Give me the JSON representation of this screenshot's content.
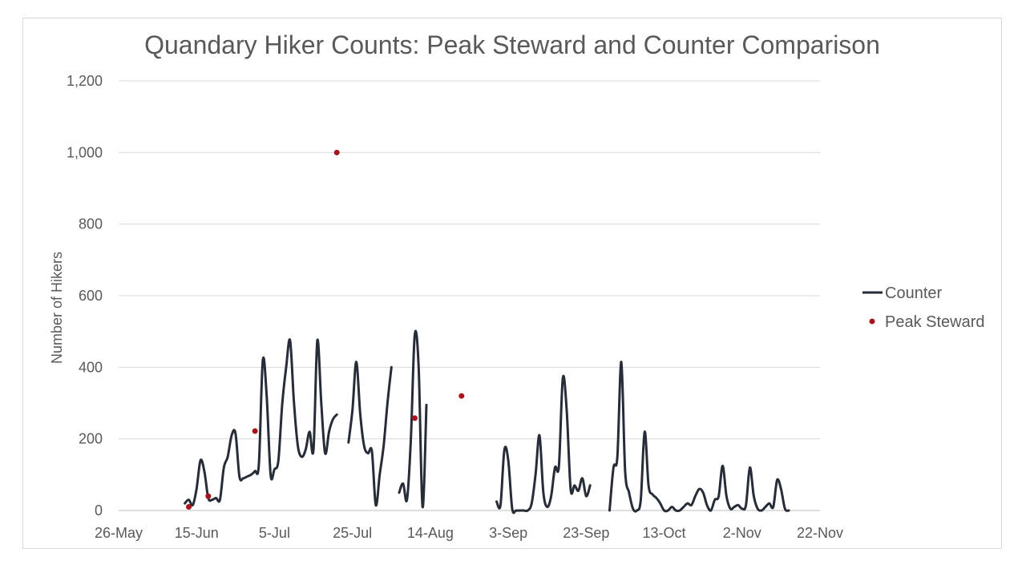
{
  "chart_data": {
    "type": "line",
    "title": "Quandary Hiker Counts: Peak Steward and Counter Comparison",
    "ylabel": "Number of Hikers",
    "xlabel": "",
    "ylim": [
      0,
      1200
    ],
    "xlim": [
      "2017-05-26",
      "2017-11-22"
    ],
    "y_ticks": [
      0,
      200,
      400,
      600,
      800,
      1000,
      1200
    ],
    "y_tick_labels": [
      "0",
      "200",
      "400",
      "600",
      "800",
      "1,000",
      "1,200"
    ],
    "x_ticks": [
      "2017-05-26",
      "2017-06-15",
      "2017-07-05",
      "2017-07-25",
      "2017-08-14",
      "2017-09-03",
      "2017-09-23",
      "2017-10-13",
      "2017-11-02",
      "2017-11-22"
    ],
    "x_tick_labels": [
      "26-May",
      "15-Jun",
      "5-Jul",
      "25-Jul",
      "14-Aug",
      "3-Sep",
      "23-Sep",
      "13-Oct",
      "2-Nov",
      "22-Nov"
    ],
    "grid": "horizontal",
    "legend_position": "right",
    "series": [
      {
        "name": "Counter",
        "kind": "line",
        "color": "#262d37",
        "segments": [
          [
            [
              "2017-06-12",
              20
            ],
            [
              "2017-06-13",
              30
            ],
            [
              "2017-06-14",
              15
            ],
            [
              "2017-06-15",
              60
            ],
            [
              "2017-06-16",
              140
            ],
            [
              "2017-06-17",
              110
            ],
            [
              "2017-06-18",
              35
            ],
            [
              "2017-06-19",
              30
            ],
            [
              "2017-06-20",
              35
            ],
            [
              "2017-06-21",
              30
            ],
            [
              "2017-06-22",
              120
            ],
            [
              "2017-06-23",
              150
            ],
            [
              "2017-06-24",
              210
            ],
            [
              "2017-06-25",
              215
            ],
            [
              "2017-06-26",
              95
            ],
            [
              "2017-06-27",
              90
            ],
            [
              "2017-06-28",
              95
            ],
            [
              "2017-06-29",
              100
            ],
            [
              "2017-06-30",
              110
            ],
            [
              "2017-07-01",
              130
            ],
            [
              "2017-07-02",
              420
            ],
            [
              "2017-07-03",
              320
            ],
            [
              "2017-07-04",
              100
            ],
            [
              "2017-07-05",
              115
            ],
            [
              "2017-07-06",
              140
            ],
            [
              "2017-07-07",
              300
            ],
            [
              "2017-07-08",
              400
            ],
            [
              "2017-07-09",
              475
            ],
            [
              "2017-07-10",
              300
            ],
            [
              "2017-07-11",
              180
            ],
            [
              "2017-07-12",
              150
            ],
            [
              "2017-07-13",
              170
            ],
            [
              "2017-07-14",
              220
            ],
            [
              "2017-07-15",
              170
            ],
            [
              "2017-07-16",
              475
            ],
            [
              "2017-07-17",
              300
            ],
            [
              "2017-07-18",
              160
            ],
            [
              "2017-07-19",
              220
            ],
            [
              "2017-07-20",
              255
            ],
            [
              "2017-07-21",
              268
            ]
          ],
          [
            [
              "2017-07-24",
              190
            ],
            [
              "2017-07-25",
              280
            ],
            [
              "2017-07-26",
              415
            ],
            [
              "2017-07-27",
              270
            ],
            [
              "2017-07-28",
              180
            ],
            [
              "2017-07-29",
              160
            ],
            [
              "2017-07-30",
              165
            ],
            [
              "2017-07-31",
              15
            ],
            [
              "2017-08-01",
              100
            ],
            [
              "2017-08-02",
              180
            ],
            [
              "2017-08-03",
              300
            ],
            [
              "2017-08-04",
              400
            ]
          ],
          [
            [
              "2017-08-06",
              50
            ],
            [
              "2017-08-07",
              75
            ],
            [
              "2017-08-08",
              30
            ],
            [
              "2017-08-09",
              200
            ],
            [
              "2017-08-10",
              490
            ],
            [
              "2017-08-11",
              400
            ],
            [
              "2017-08-12",
              10
            ],
            [
              "2017-08-13",
              295
            ]
          ],
          [
            [
              "2017-08-31",
              25
            ],
            [
              "2017-09-01",
              15
            ],
            [
              "2017-09-02",
              170
            ],
            [
              "2017-09-03",
              140
            ],
            [
              "2017-09-04",
              5
            ],
            [
              "2017-09-05",
              0
            ],
            [
              "2017-09-06",
              0
            ],
            [
              "2017-09-07",
              0
            ],
            [
              "2017-09-08",
              0
            ],
            [
              "2017-09-09",
              20
            ],
            [
              "2017-09-10",
              100
            ],
            [
              "2017-09-11",
              210
            ],
            [
              "2017-09-12",
              50
            ],
            [
              "2017-09-13",
              10
            ],
            [
              "2017-09-14",
              40
            ],
            [
              "2017-09-15",
              120
            ],
            [
              "2017-09-16",
              125
            ],
            [
              "2017-09-17",
              370
            ],
            [
              "2017-09-18",
              280
            ],
            [
              "2017-09-19",
              60
            ],
            [
              "2017-09-20",
              70
            ],
            [
              "2017-09-21",
              55
            ],
            [
              "2017-09-22",
              90
            ],
            [
              "2017-09-23",
              40
            ],
            [
              "2017-09-24",
              70
            ]
          ],
          [
            [
              "2017-09-29",
              0
            ],
            [
              "2017-09-30",
              120
            ],
            [
              "2017-10-01",
              150
            ],
            [
              "2017-10-02",
              415
            ],
            [
              "2017-10-03",
              110
            ],
            [
              "2017-10-04",
              50
            ],
            [
              "2017-10-05",
              5
            ],
            [
              "2017-10-06",
              0
            ],
            [
              "2017-10-07",
              30
            ],
            [
              "2017-10-08",
              220
            ],
            [
              "2017-10-09",
              70
            ],
            [
              "2017-10-10",
              45
            ],
            [
              "2017-10-11",
              35
            ],
            [
              "2017-10-12",
              20
            ],
            [
              "2017-10-13",
              0
            ],
            [
              "2017-10-14",
              0
            ],
            [
              "2017-10-15",
              10
            ],
            [
              "2017-10-16",
              0
            ],
            [
              "2017-10-17",
              0
            ],
            [
              "2017-10-18",
              10
            ],
            [
              "2017-10-19",
              20
            ],
            [
              "2017-10-20",
              15
            ],
            [
              "2017-10-21",
              40
            ],
            [
              "2017-10-22",
              60
            ],
            [
              "2017-10-23",
              50
            ],
            [
              "2017-10-24",
              15
            ],
            [
              "2017-10-25",
              0
            ],
            [
              "2017-10-26",
              30
            ],
            [
              "2017-10-27",
              40
            ],
            [
              "2017-10-28",
              125
            ],
            [
              "2017-10-29",
              40
            ],
            [
              "2017-10-30",
              5
            ],
            [
              "2017-10-31",
              10
            ],
            [
              "2017-11-01",
              15
            ],
            [
              "2017-11-02",
              5
            ],
            [
              "2017-11-03",
              15
            ],
            [
              "2017-11-04",
              120
            ],
            [
              "2017-11-05",
              40
            ],
            [
              "2017-11-06",
              5
            ],
            [
              "2017-11-07",
              0
            ],
            [
              "2017-11-08",
              10
            ],
            [
              "2017-11-09",
              20
            ],
            [
              "2017-11-10",
              10
            ],
            [
              "2017-11-11",
              85
            ],
            [
              "2017-11-12",
              60
            ],
            [
              "2017-11-13",
              5
            ],
            [
              "2017-11-14",
              0
            ]
          ]
        ]
      },
      {
        "name": "Peak Steward",
        "kind": "scatter",
        "color": "#a6141e",
        "points": [
          [
            "2017-06-13",
            10
          ],
          [
            "2017-06-18",
            40
          ],
          [
            "2017-06-30",
            222
          ],
          [
            "2017-07-21",
            1000
          ],
          [
            "2017-08-10",
            258
          ],
          [
            "2017-08-22",
            320
          ]
        ]
      }
    ]
  }
}
